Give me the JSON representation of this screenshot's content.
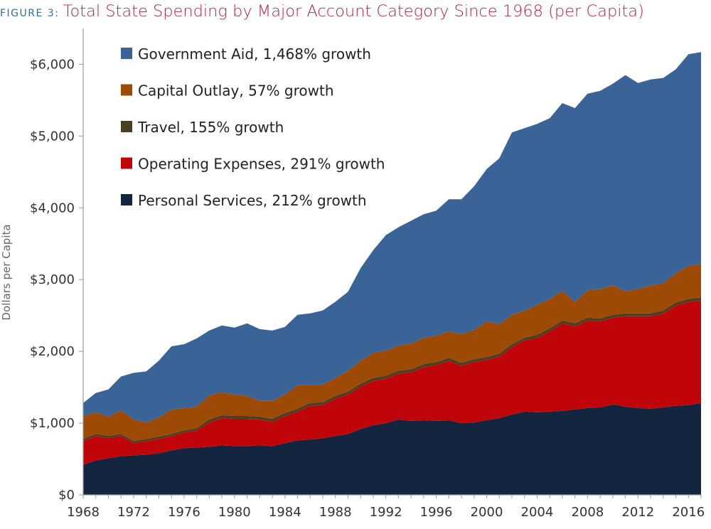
{
  "figure_label": "FIGURE 3:",
  "chart_data": {
    "type": "area",
    "stacked": true,
    "title": "Total State Spending by Major Account Category Since 1968 (per Capita)",
    "ylabel": "Dollars per Capita",
    "xlabel": "",
    "ylim": [
      0,
      6500
    ],
    "xlim": [
      1968,
      2017
    ],
    "yticks": [
      0,
      1000,
      2000,
      3000,
      4000,
      5000,
      6000
    ],
    "ytick_labels": [
      "$0",
      "$1,000",
      "$2,000",
      "$3,000",
      "$4,000",
      "$5,000",
      "$6,000"
    ],
    "xticks": [
      1968,
      1972,
      1976,
      1980,
      1984,
      1988,
      1992,
      1996,
      2000,
      2004,
      2008,
      2012,
      2016
    ],
    "grid": false,
    "legend_position": "top-left",
    "x": [
      1968,
      1969,
      1970,
      1971,
      1972,
      1973,
      1974,
      1975,
      1976,
      1977,
      1978,
      1979,
      1980,
      1981,
      1982,
      1983,
      1984,
      1985,
      1986,
      1987,
      1988,
      1989,
      1990,
      1991,
      1992,
      1993,
      1994,
      1995,
      1996,
      1997,
      1998,
      1999,
      2000,
      2001,
      2002,
      2003,
      2004,
      2005,
      2006,
      2007,
      2008,
      2009,
      2010,
      2011,
      2012,
      2013,
      2014,
      2015,
      2016,
      2017
    ],
    "series": [
      {
        "name": "Personal Services, 212% growth",
        "color": "#13253f",
        "values": [
          420,
          480,
          510,
          540,
          550,
          560,
          580,
          620,
          650,
          660,
          670,
          690,
          680,
          680,
          690,
          680,
          720,
          760,
          770,
          790,
          820,
          850,
          920,
          970,
          1000,
          1050,
          1030,
          1040,
          1030,
          1040,
          1000,
          1010,
          1040,
          1070,
          1120,
          1160,
          1150,
          1160,
          1170,
          1190,
          1210,
          1220,
          1260,
          1230,
          1210,
          1200,
          1220,
          1240,
          1250,
          1280
        ]
      },
      {
        "name": "Operating Expenses, 291% growth",
        "color": "#c0050a",
        "values": [
          330,
          340,
          280,
          280,
          170,
          190,
          200,
          200,
          220,
          240,
          340,
          380,
          380,
          380,
          360,
          340,
          380,
          400,
          470,
          460,
          520,
          550,
          590,
          620,
          620,
          640,
          680,
          740,
          780,
          830,
          800,
          840,
          840,
          860,
          940,
          990,
          1040,
          1120,
          1220,
          1160,
          1220,
          1200,
          1210,
          1260,
          1280,
          1290,
          1310,
          1400,
          1440,
          1430
        ]
      },
      {
        "name": "Travel, 155% growth",
        "color": "#4a3f24",
        "values": [
          30,
          30,
          30,
          30,
          30,
          30,
          30,
          30,
          30,
          30,
          40,
          40,
          40,
          40,
          40,
          40,
          40,
          40,
          40,
          40,
          40,
          40,
          40,
          40,
          40,
          40,
          40,
          40,
          40,
          40,
          40,
          40,
          40,
          40,
          40,
          40,
          40,
          40,
          40,
          40,
          40,
          40,
          40,
          40,
          40,
          40,
          40,
          40,
          40,
          40
        ]
      },
      {
        "name": "Capital Outlay, 57% growth",
        "color": "#9c4a06",
        "values": [
          320,
          300,
          270,
          330,
          300,
          230,
          270,
          340,
          310,
          300,
          340,
          320,
          300,
          280,
          220,
          250,
          260,
          330,
          250,
          250,
          250,
          290,
          320,
          350,
          350,
          350,
          360,
          370,
          370,
          370,
          400,
          410,
          500,
          410,
          410,
          380,
          420,
          410,
          410,
          300,
          380,
          410,
          410,
          310,
          340,
          390,
          380,
          410,
          460,
          470
        ]
      },
      {
        "name": "Government Aid, 1,468% growth",
        "color": "#3a6398",
        "values": [
          180,
          270,
          380,
          470,
          650,
          710,
          790,
          880,
          890,
          950,
          900,
          930,
          930,
          1010,
          1000,
          980,
          940,
          980,
          1000,
          1030,
          1060,
          1100,
          1290,
          1430,
          1610,
          1650,
          1710,
          1720,
          1740,
          1840,
          1880,
          2000,
          2120,
          2310,
          2540,
          2540,
          2520,
          2520,
          2620,
          2700,
          2740,
          2760,
          2810,
          3010,
          2870,
          2870,
          2860,
          2840,
          2950,
          2950
        ]
      }
    ]
  }
}
